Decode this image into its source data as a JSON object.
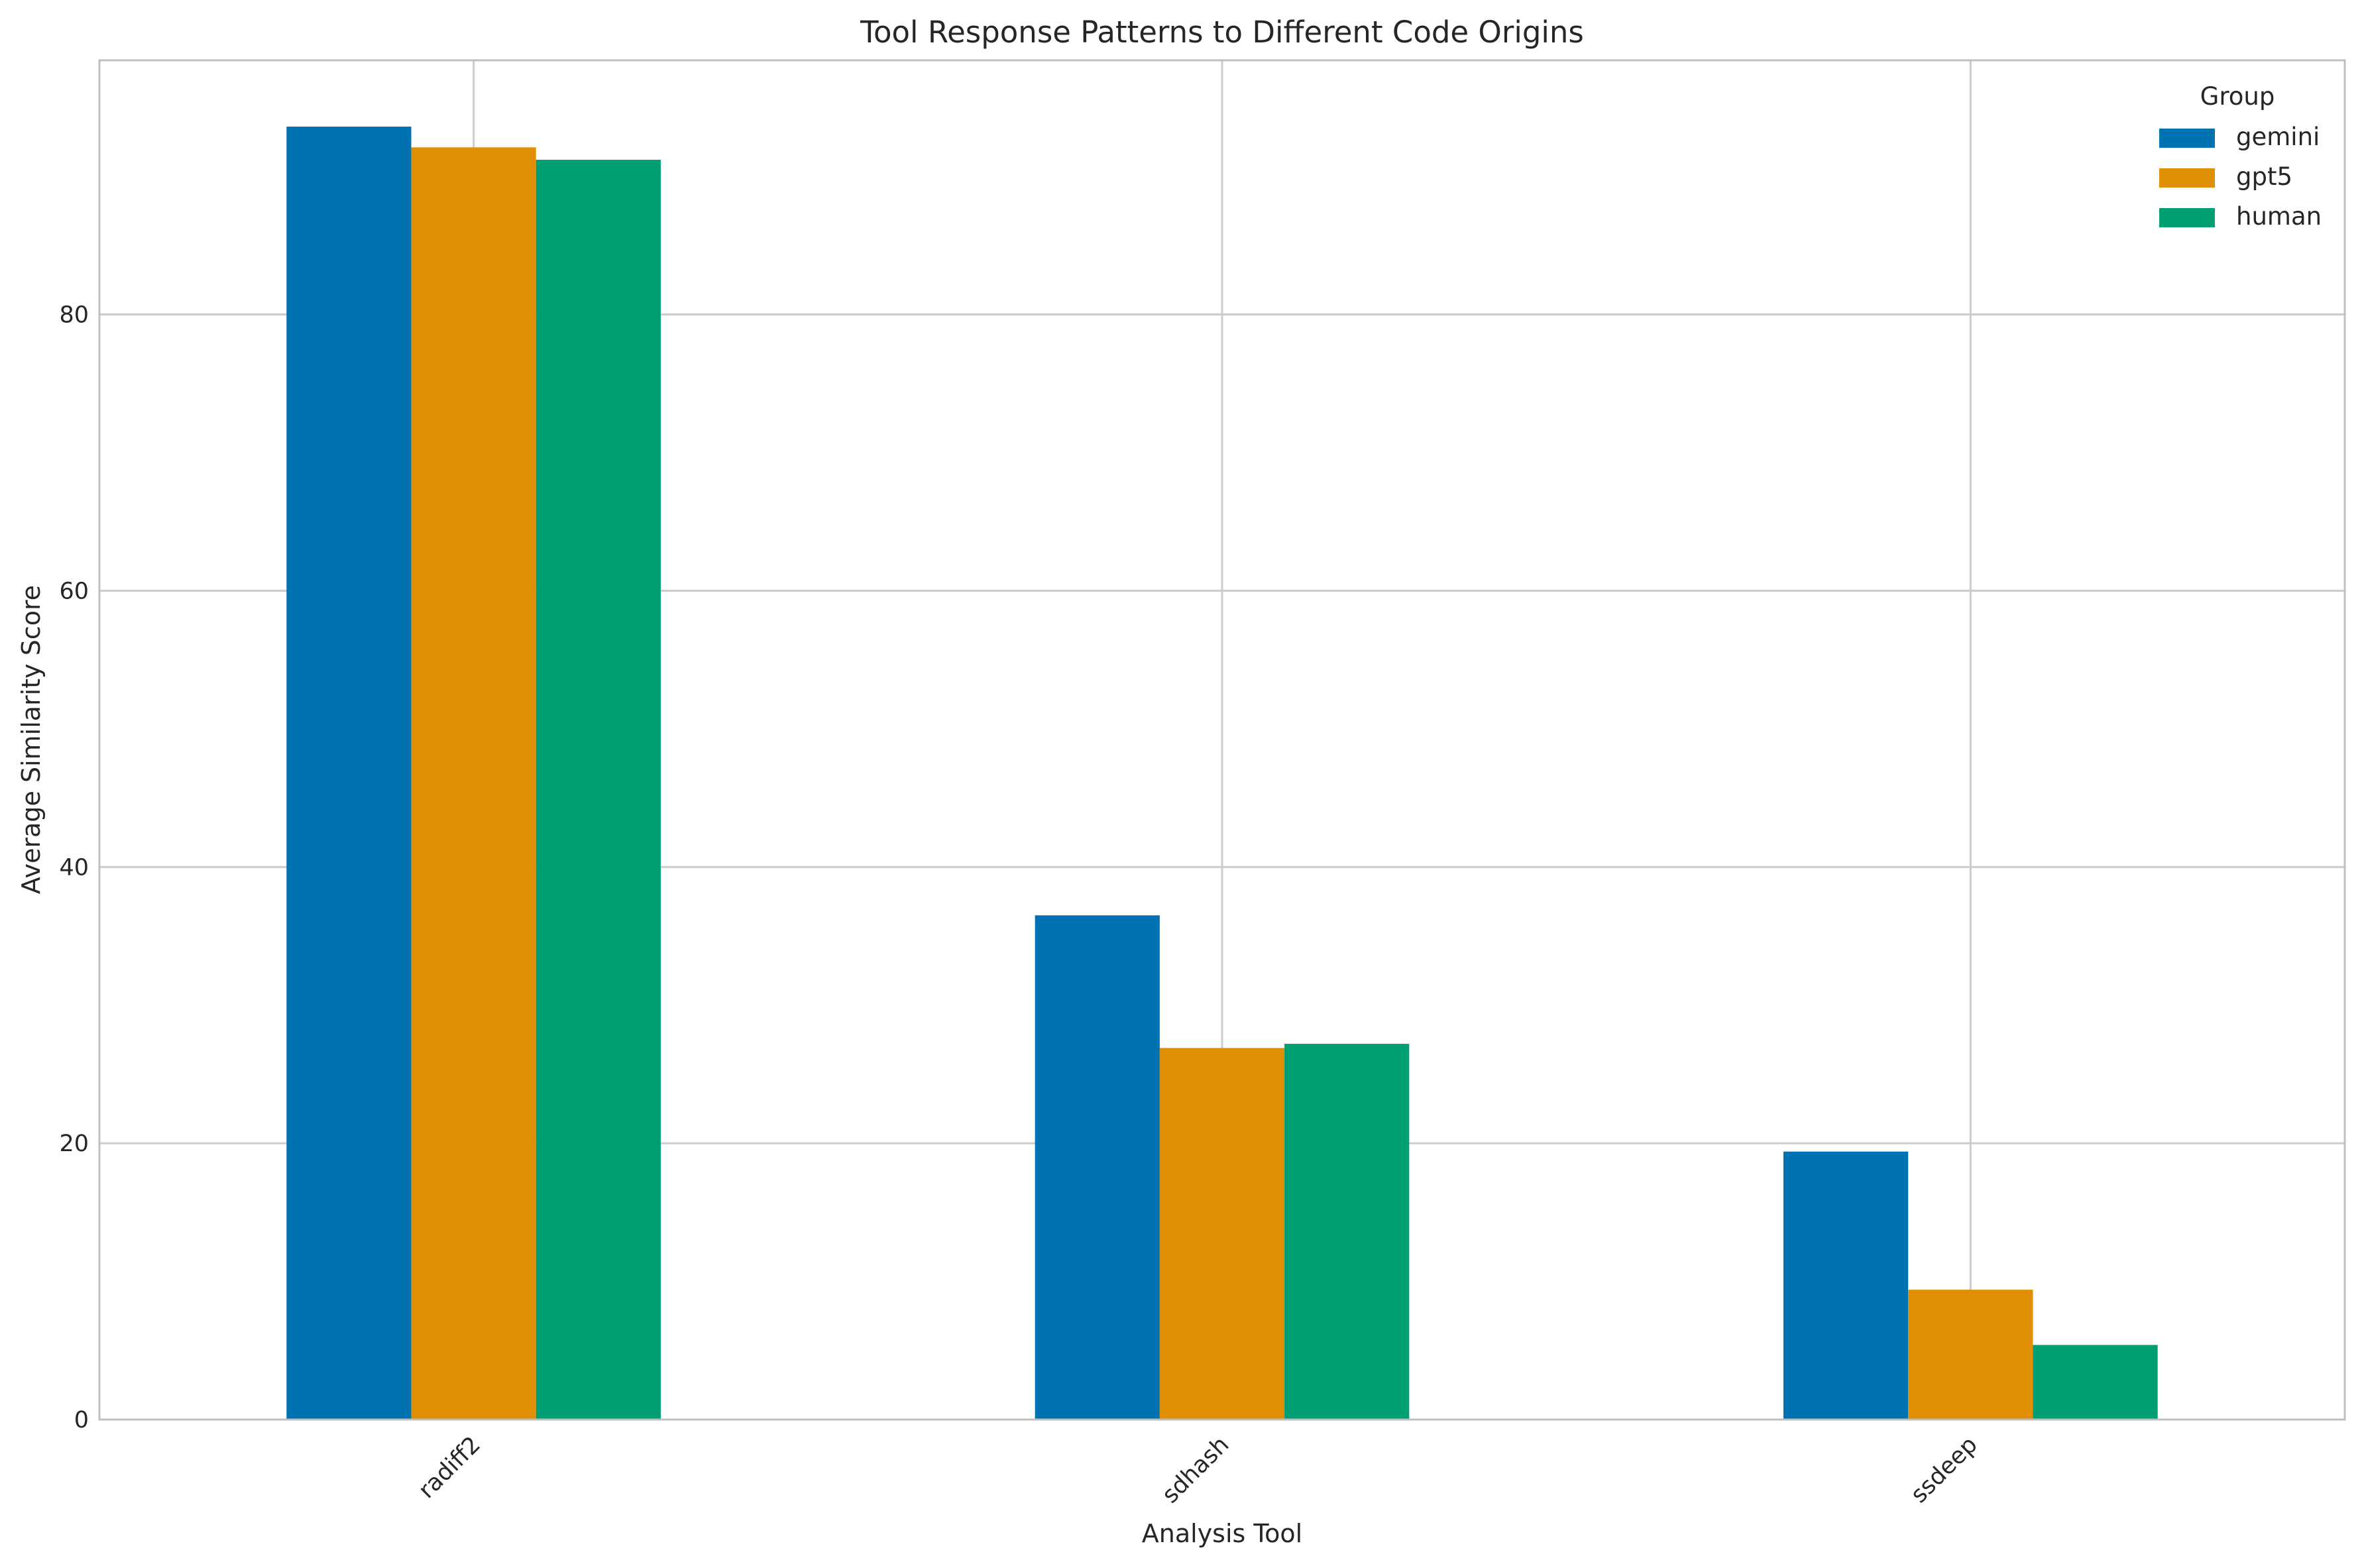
{
  "chart_data": {
    "type": "bar",
    "title": "Tool Response Patterns to Different Code Origins",
    "xlabel": "Analysis Tool",
    "ylabel": "Average Similarity Score",
    "categories": [
      "radiff2",
      "sdhash",
      "ssdeep"
    ],
    "series": [
      {
        "name": "gemini",
        "color": "#0072b2",
        "values": [
          93.6,
          36.5,
          19.4
        ]
      },
      {
        "name": "gpt5",
        "color": "#e08f04",
        "values": [
          92.1,
          26.9,
          9.4
        ]
      },
      {
        "name": "human",
        "color": "#009e73",
        "values": [
          91.2,
          27.2,
          5.4
        ]
      }
    ],
    "ylim": [
      0,
      98.4
    ],
    "yticks": [
      "0",
      "20",
      "40",
      "60",
      "80"
    ],
    "legend": {
      "title": "Group",
      "position": "top-right"
    },
    "grid": true
  }
}
